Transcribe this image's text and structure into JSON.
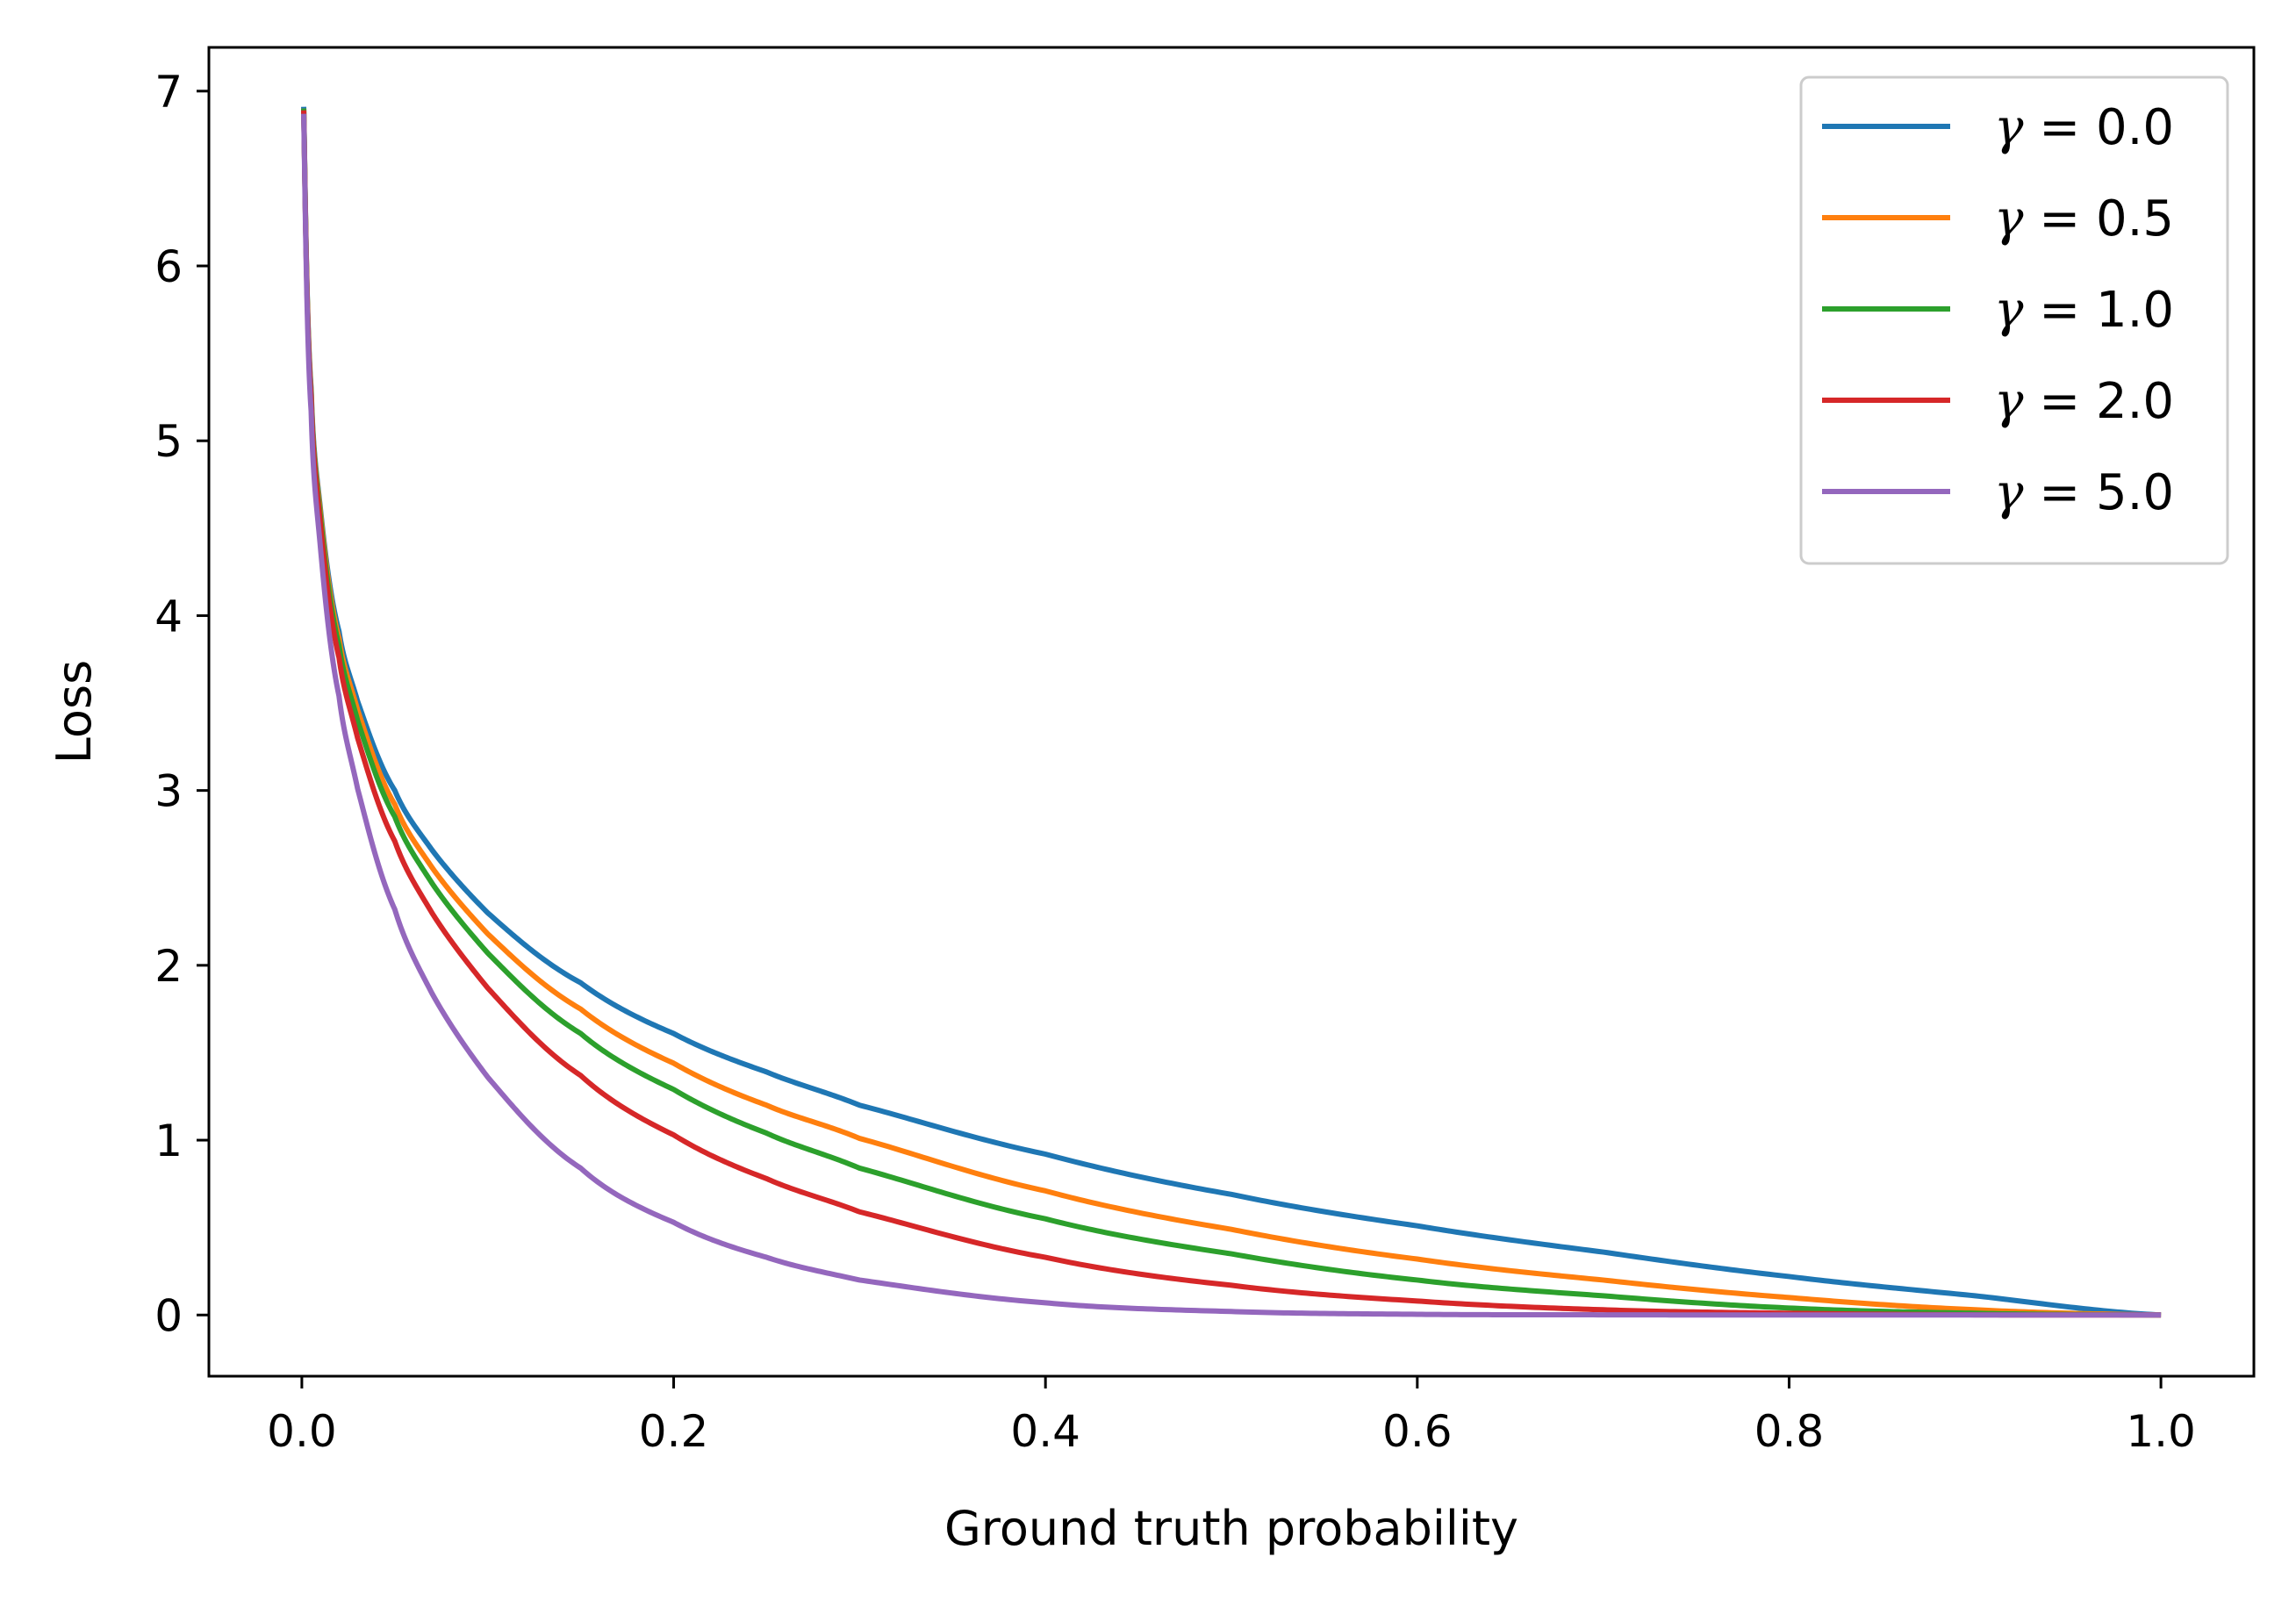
{
  "chart_data": {
    "type": "line",
    "title": "",
    "xlabel": "Ground truth probability",
    "ylabel": "Loss",
    "xlim": [
      -0.05,
      1.05
    ],
    "ylim": [
      -0.35,
      7.25
    ],
    "x_ticks": [
      0.0,
      0.2,
      0.4,
      0.6,
      0.8,
      1.0
    ],
    "x_tick_labels": [
      "0.0",
      "0.2",
      "0.4",
      "0.6",
      "0.8",
      "1.0"
    ],
    "y_ticks": [
      0,
      1,
      2,
      3,
      4,
      5,
      6,
      7
    ],
    "y_tick_labels": [
      "0",
      "1",
      "2",
      "3",
      "4",
      "5",
      "6",
      "7"
    ],
    "grid": false,
    "legend_position": "top-right",
    "x": [
      0.001,
      0.005,
      0.01,
      0.02,
      0.03,
      0.05,
      0.07,
      0.1,
      0.15,
      0.2,
      0.25,
      0.3,
      0.4,
      0.5,
      0.6,
      0.7,
      0.8,
      0.9,
      1.0
    ],
    "series": [
      {
        "name": "γ = 0.0",
        "legend_symbol": "γ",
        "legend_rest": " = 0.0",
        "color": "#1f77b4",
        "values": [
          6.91,
          5.3,
          4.61,
          3.91,
          3.51,
          3.0,
          2.66,
          2.3,
          1.9,
          1.61,
          1.39,
          1.2,
          0.92,
          0.69,
          0.51,
          0.36,
          0.22,
          0.11,
          0.0
        ]
      },
      {
        "name": "γ = 0.5",
        "legend_symbol": "γ",
        "legend_rest": " = 0.5",
        "color": "#ff7f0e",
        "values": [
          6.9,
          5.28,
          4.59,
          3.87,
          3.46,
          2.92,
          2.56,
          2.18,
          1.75,
          1.44,
          1.2,
          1.01,
          0.71,
          0.49,
          0.32,
          0.2,
          0.1,
          0.03,
          0.0
        ]
      },
      {
        "name": "γ = 1.0",
        "legend_symbol": "γ",
        "legend_rest": " = 1.0",
        "color": "#2ca02c",
        "values": [
          6.9,
          5.27,
          4.56,
          3.83,
          3.4,
          2.85,
          2.47,
          2.07,
          1.61,
          1.29,
          1.04,
          0.84,
          0.55,
          0.35,
          0.2,
          0.11,
          0.04,
          0.01,
          0.0
        ]
      },
      {
        "name": "γ = 2.0",
        "legend_symbol": "γ",
        "legend_rest": " = 2.0",
        "color": "#d62728",
        "values": [
          6.89,
          5.25,
          4.52,
          3.76,
          3.3,
          2.71,
          2.3,
          1.87,
          1.37,
          1.03,
          0.78,
          0.59,
          0.33,
          0.17,
          0.08,
          0.03,
          0.01,
          0.001,
          0.0
        ]
      },
      {
        "name": "γ = 5.0",
        "legend_symbol": "γ",
        "legend_rest": " = 5.0",
        "color": "#9467bd",
        "values": [
          6.87,
          5.17,
          4.39,
          3.54,
          3.01,
          2.32,
          1.84,
          1.36,
          0.84,
          0.53,
          0.33,
          0.2,
          0.07,
          0.02,
          0.004,
          0.001,
          0.0,
          0.0,
          0.0
        ]
      }
    ]
  }
}
